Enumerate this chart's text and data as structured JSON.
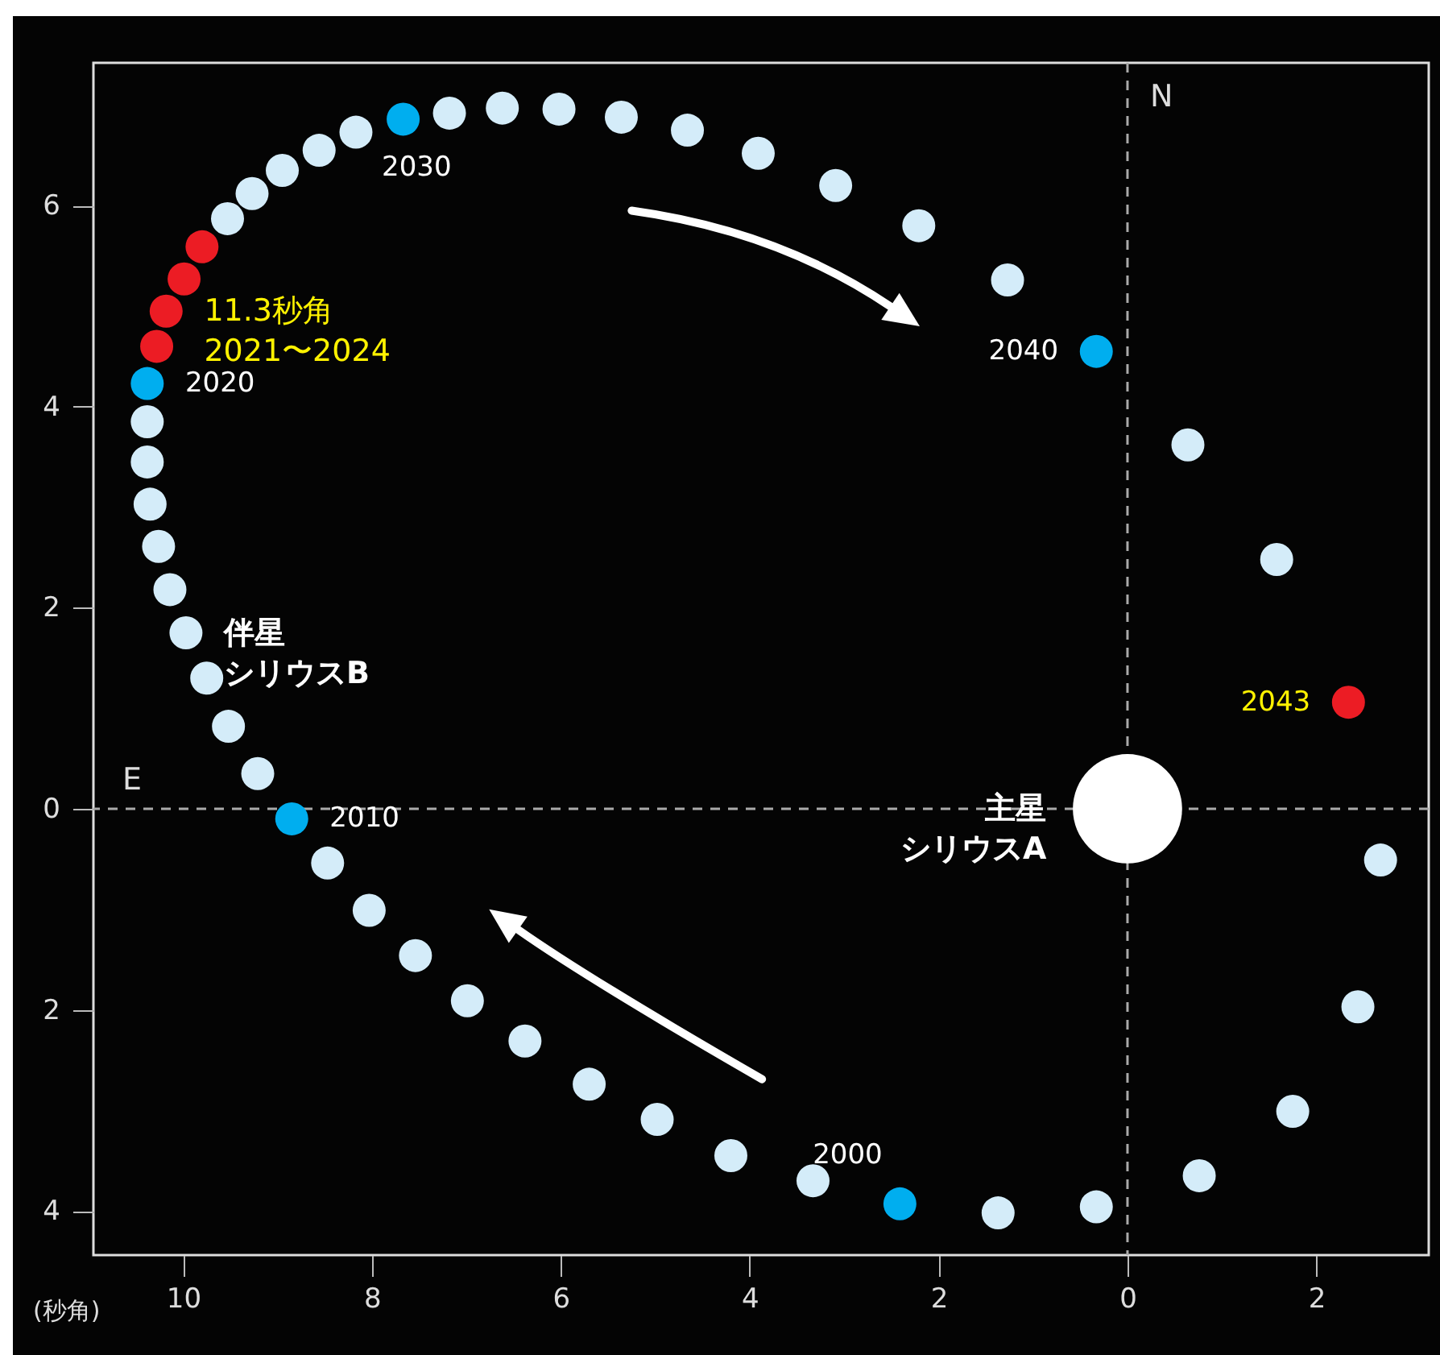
{
  "chart_data": {
    "type": "scatter",
    "xlabel": "(秒角)",
    "xlim": [
      10.95,
      -3.19
    ],
    "ylim": [
      -4.44,
      7.42
    ],
    "xticks": [
      10,
      8,
      6,
      4,
      2,
      0,
      {
        "value": -2,
        "label": "2"
      }
    ],
    "yticks": [
      {
        "value": -4,
        "label": "4"
      },
      {
        "value": -2,
        "label": "2"
      },
      0,
      2,
      4,
      6
    ],
    "grid": false,
    "marker": "circle",
    "series": [
      {
        "color": "#d4ecf9",
        "x": [
          3.33,
          4.2,
          4.98,
          5.7,
          6.38,
          6.99,
          7.54,
          8.03,
          8.47,
          9.21,
          9.52,
          9.75,
          9.97,
          10.14,
          10.26,
          10.35,
          10.38,
          10.38,
          9.53,
          9.27,
          8.95,
          8.56,
          8.17,
          7.18,
          6.62,
          6.02,
          5.36,
          4.66,
          3.91,
          3.09,
          2.21,
          1.27,
          -0.64,
          -1.58,
          -2.68,
          -2.44,
          -1.75,
          -0.76,
          0.33,
          1.37
        ],
        "values": [
          -3.7,
          -3.45,
          -3.09,
          -2.74,
          -2.31,
          -1.91,
          -1.46,
          -1.01,
          -0.54,
          0.35,
          0.82,
          1.3,
          1.75,
          2.18,
          2.61,
          3.03,
          3.45,
          3.85,
          5.87,
          6.12,
          6.35,
          6.55,
          6.73,
          6.92,
          6.97,
          6.96,
          6.88,
          6.75,
          6.52,
          6.2,
          5.8,
          5.26,
          3.62,
          2.48,
          -0.51,
          -1.97,
          -3.01,
          -3.65,
          -3.96,
          -4.02
        ]
      },
      {
        "color": "#00aeef",
        "x": [
          2.41,
          8.85,
          10.38,
          7.67,
          0.33
        ],
        "values": [
          -3.93,
          -0.1,
          4.23,
          6.86,
          4.55
        ]
      },
      {
        "color": "#ec1c24",
        "x": [
          10.28,
          10.18,
          9.99,
          9.8,
          -2.34
        ],
        "values": [
          4.6,
          4.95,
          5.27,
          5.59,
          1.06
        ]
      },
      {
        "type": "bubble",
        "color": "#ffffff",
        "x": [
          0
        ],
        "values": [
          0
        ],
        "sizes": [
          1
        ]
      }
    ],
    "ref_lines": [
      {
        "axis": "y",
        "value": 0,
        "label": "E",
        "color": "#aaaaaa",
        "line_style": "dashed"
      },
      {
        "axis": "x",
        "value": 0,
        "label": "N",
        "color": "#aaaaaa",
        "line_style": "dashed"
      }
    ],
    "annotations": [
      {
        "text": "2000",
        "x": 2.41,
        "y": -3.93
      },
      {
        "text": "2010",
        "x": 8.85,
        "y": -0.1
      },
      {
        "text": "2020",
        "x": 10.38,
        "y": 4.23
      },
      {
        "text": "2030",
        "x": 7.67,
        "y": 6.86
      },
      {
        "text": "2040",
        "x": 0.33,
        "y": 4.55
      },
      {
        "text": "2043",
        "x": -2.34,
        "y": 1.06
      },
      {
        "text": "11.3秒角",
        "x": 10.18,
        "y": 4.95
      },
      {
        "text": "2021〜2024",
        "x": 10.18,
        "y": 4.95
      },
      {
        "text": "伴星",
        "x": 9.97,
        "y": 1.75
      },
      {
        "text": "シリウスB",
        "x": 9.97,
        "y": 1.75
      },
      {
        "text": "主星",
        "x": 0,
        "y": 0
      },
      {
        "text": "シリウスA",
        "x": 0,
        "y": 0
      }
    ]
  }
}
